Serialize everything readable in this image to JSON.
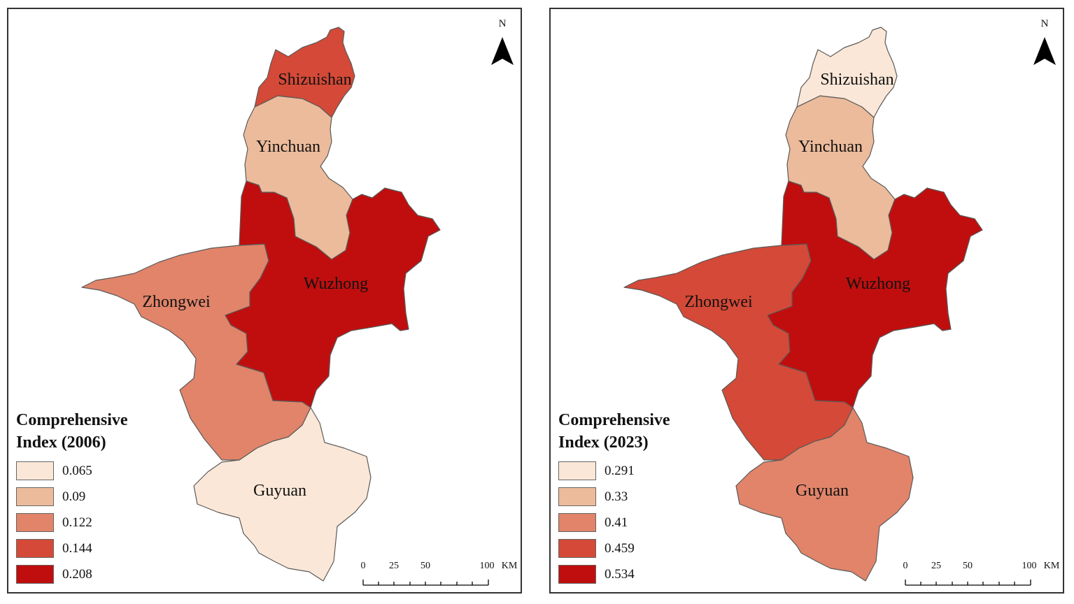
{
  "maps": [
    {
      "legend_title_line1": "Comprehensive",
      "legend_title_line2": "Index (2006)",
      "classes": [
        {
          "label": "0.065",
          "color": "#fbe7d7"
        },
        {
          "label": "0.09",
          "color": "#ecbb9b"
        },
        {
          "label": "0.122",
          "color": "#e1846a"
        },
        {
          "label": "0.144",
          "color": "#d44937"
        },
        {
          "label": "0.208",
          "color": "#c00e0e"
        }
      ],
      "regions": {
        "shizuishan": {
          "name": "Shizuishan",
          "class": 3
        },
        "yinchuan": {
          "name": "Yinchuan",
          "class": 1
        },
        "wuzhong": {
          "name": "Wuzhong",
          "class": 4
        },
        "zhongwei": {
          "name": "Zhongwei",
          "class": 2
        },
        "guyuan": {
          "name": "Guyuan",
          "class": 0
        }
      },
      "north": "N",
      "scale": {
        "ticks": [
          "0",
          "25",
          "50",
          "100"
        ],
        "unit": "KM"
      }
    },
    {
      "legend_title_line1": "Comprehensive",
      "legend_title_line2": "Index (2023)",
      "classes": [
        {
          "label": "0.291",
          "color": "#fbe7d7"
        },
        {
          "label": "0.33",
          "color": "#ecbb9b"
        },
        {
          "label": "0.41",
          "color": "#e1846a"
        },
        {
          "label": "0.459",
          "color": "#d44937"
        },
        {
          "label": "0.534",
          "color": "#c00e0e"
        }
      ],
      "regions": {
        "shizuishan": {
          "name": "Shizuishan",
          "class": 0
        },
        "yinchuan": {
          "name": "Yinchuan",
          "class": 1
        },
        "wuzhong": {
          "name": "Wuzhong",
          "class": 4
        },
        "zhongwei": {
          "name": "Zhongwei",
          "class": 3
        },
        "guyuan": {
          "name": "Guyuan",
          "class": 2
        }
      },
      "north": "N",
      "scale": {
        "ticks": [
          "0",
          "25",
          "50",
          "100"
        ],
        "unit": "KM"
      }
    }
  ]
}
